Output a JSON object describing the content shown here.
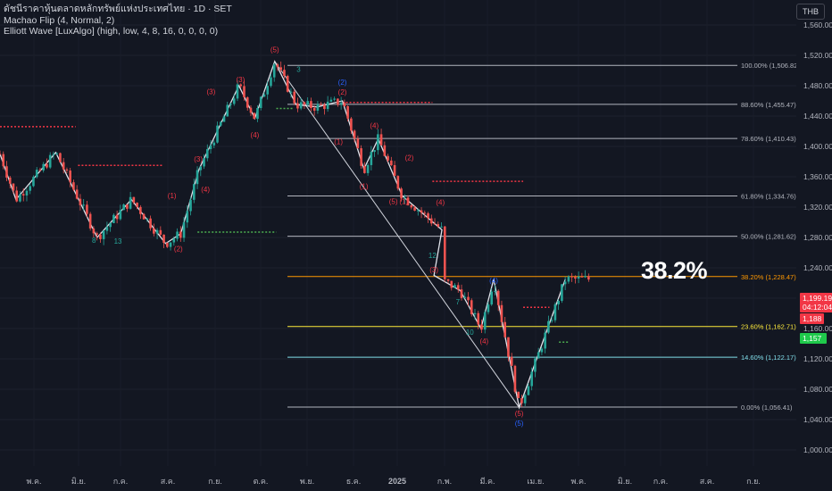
{
  "legend": {
    "title": "ดัชนีราคาหุ้นตลาดหลักทรัพย์แห่งประเทศไทย · 1D · SET",
    "indicator1": "Machao Flip (4, Normal, 2)",
    "indicator2": "Elliott Wave [LuxAlgo] (high, low, 4, 8, 16, 0, 0, 0, 0)"
  },
  "currency_button": "THB",
  "highlight_label": "38.2%",
  "price_tags": {
    "last_price": "1,199.19",
    "countdown": "04:12:04",
    "red_level": "1,188",
    "green_level": "1,157",
    "colors": {
      "last": "#f23645",
      "red": "#f23645",
      "green": "#22ab94"
    }
  },
  "chart_data": {
    "type": "candlestick",
    "y_axis": {
      "range": [
        990,
        1570
      ],
      "ticks": [
        1000,
        1040,
        1080,
        1120,
        1160,
        1200,
        1240,
        1280,
        1320,
        1360,
        1400,
        1440,
        1480,
        1520,
        1560
      ],
      "tick_labels": [
        "1,000.00",
        "1,040.00",
        "1,080.00",
        "1,120.00",
        "1,160.00",
        "1,200.00",
        "1,240.00",
        "1,280.00",
        "1,320.00",
        "1,360.00",
        "1,400.00",
        "1,440.00",
        "1,480.00",
        "1,520.00",
        "1,560.00"
      ]
    },
    "x_axis": {
      "labels": [
        "พ.ค.",
        "มิ.ย.",
        "ก.ค.",
        "ส.ค.",
        "ก.ย.",
        "ต.ค.",
        "พ.ย.",
        "ธ.ค.",
        "2025",
        "ก.พ.",
        "มี.ค.",
        "เม.ย.",
        "พ.ค.",
        "มิ.ย.",
        "ก.ค.",
        "ส.ค.",
        "ก.ย."
      ],
      "bold": [
        false,
        false,
        false,
        false,
        false,
        false,
        false,
        false,
        true,
        false,
        false,
        false,
        false,
        false,
        false,
        false,
        false
      ]
    },
    "fib_levels": [
      {
        "ratio": "100.00%",
        "value": 1506.82,
        "label": "100.00% (1,506.82)",
        "color": "#b2b5be"
      },
      {
        "ratio": "88.60%",
        "value": 1455.47,
        "label": "88.60% (1,455.47)",
        "color": "#b2b5be"
      },
      {
        "ratio": "78.60%",
        "value": 1410.43,
        "label": "78.60% (1,410.43)",
        "color": "#b2b5be"
      },
      {
        "ratio": "61.80%",
        "value": 1334.76,
        "label": "61.80% (1,334.76)",
        "color": "#b2b5be"
      },
      {
        "ratio": "50.00%",
        "value": 1281.62,
        "label": "50.00% (1,281.62)",
        "color": "#b2b5be"
      },
      {
        "ratio": "38.20%",
        "value": 1228.47,
        "label": "38.20% (1,228.47)",
        "color": "#ff9800"
      },
      {
        "ratio": "23.60%",
        "value": 1162.71,
        "label": "23.60% (1,162.71)",
        "color": "#ffeb3b"
      },
      {
        "ratio": "14.60%",
        "value": 1122.17,
        "label": "14.60% (1,122.17)",
        "color": "#80deea"
      },
      {
        "ratio": "0.00%",
        "value": 1056.41,
        "label": "0.00% (1,056.41)",
        "color": "#b2b5be"
      }
    ],
    "wave_labels": [
      {
        "text": "(5)",
        "x": 0.345,
        "y": 1524,
        "color": "#f23645"
      },
      {
        "text": "3",
        "x": 0.375,
        "y": 1498,
        "color": "#26a69a"
      },
      {
        "text": "(3)",
        "x": 0.302,
        "y": 1485,
        "color": "#f23645"
      },
      {
        "text": "(3)",
        "x": 0.265,
        "y": 1469,
        "color": "#f23645"
      },
      {
        "text": "(4)",
        "x": 0.32,
        "y": 1412,
        "color": "#f23645"
      },
      {
        "text": "(2)",
        "x": 0.43,
        "y": 1481,
        "color": "#2962ff"
      },
      {
        "text": "(2)",
        "x": 0.43,
        "y": 1468,
        "color": "#f23645"
      },
      {
        "text": "(4)",
        "x": 0.47,
        "y": 1424,
        "color": "#f23645"
      },
      {
        "text": "(1)",
        "x": 0.425,
        "y": 1403,
        "color": "#f23645"
      },
      {
        "text": "(2)",
        "x": 0.514,
        "y": 1382,
        "color": "#f23645"
      },
      {
        "text": "(5)",
        "x": 0.494,
        "y": 1324,
        "color": "#f23645"
      },
      {
        "text": "(1)",
        "x": 0.507,
        "y": 1324,
        "color": "#f23645"
      },
      {
        "text": "(4)",
        "x": 0.553,
        "y": 1323,
        "color": "#f23645"
      },
      {
        "text": "(1)",
        "x": 0.457,
        "y": 1344,
        "color": "#f23645"
      },
      {
        "text": "(3)",
        "x": 0.249,
        "y": 1380,
        "color": "#f23645"
      },
      {
        "text": "(4)",
        "x": 0.258,
        "y": 1340,
        "color": "#f23645"
      },
      {
        "text": "(1)",
        "x": 0.216,
        "y": 1332,
        "color": "#f23645"
      },
      {
        "text": "(2)",
        "x": 0.224,
        "y": 1262,
        "color": "#f23645"
      },
      {
        "text": "(3)",
        "x": 0.545,
        "y": 1234,
        "color": "#f23645"
      },
      {
        "text": "(4)",
        "x": 0.62,
        "y": 1220,
        "color": "#2962ff"
      },
      {
        "text": "(5)",
        "x": 0.652,
        "y": 1045,
        "color": "#f23645"
      },
      {
        "text": "(5)",
        "x": 0.652,
        "y": 1032,
        "color": "#2962ff"
      },
      {
        "text": "(4)",
        "x": 0.608,
        "y": 1140,
        "color": "#f23645"
      },
      {
        "text": "13",
        "x": 0.148,
        "y": 1272,
        "color": "#26a69a"
      },
      {
        "text": "8",
        "x": 0.118,
        "y": 1273,
        "color": "#26a69a"
      },
      {
        "text": "12",
        "x": 0.543,
        "y": 1253,
        "color": "#26a69a"
      },
      {
        "text": "10",
        "x": 0.59,
        "y": 1152,
        "color": "#26a69a"
      },
      {
        "text": "7",
        "x": 0.575,
        "y": 1192,
        "color": "#26a69a"
      }
    ],
    "zigzag_points": [
      {
        "x": 0.0,
        "y": 1390
      },
      {
        "x": 0.02,
        "y": 1330
      },
      {
        "x": 0.07,
        "y": 1392
      },
      {
        "x": 0.122,
        "y": 1280
      },
      {
        "x": 0.165,
        "y": 1330
      },
      {
        "x": 0.208,
        "y": 1272
      },
      {
        "x": 0.227,
        "y": 1285
      },
      {
        "x": 0.25,
        "y": 1370
      },
      {
        "x": 0.3,
        "y": 1480
      },
      {
        "x": 0.32,
        "y": 1437
      },
      {
        "x": 0.345,
        "y": 1512
      },
      {
        "x": 0.372,
        "y": 1455
      },
      {
        "x": 0.398,
        "y": 1452
      },
      {
        "x": 0.43,
        "y": 1460
      },
      {
        "x": 0.457,
        "y": 1370
      },
      {
        "x": 0.475,
        "y": 1410
      },
      {
        "x": 0.505,
        "y": 1335
      },
      {
        "x": 0.555,
        "y": 1290
      },
      {
        "x": 0.545,
        "y": 1230
      },
      {
        "x": 0.578,
        "y": 1210
      },
      {
        "x": 0.604,
        "y": 1160
      },
      {
        "x": 0.62,
        "y": 1225
      },
      {
        "x": 0.652,
        "y": 1056
      },
      {
        "x": 0.71,
        "y": 1225
      }
    ],
    "diagonal_line": [
      {
        "x": 0.345,
        "y": 1512
      },
      {
        "x": 0.652,
        "y": 1056
      }
    ],
    "dotted_levels": [
      {
        "x0": 0.0,
        "x1": 0.095,
        "y": 1426,
        "color": "#f23645"
      },
      {
        "x0": 0.098,
        "x1": 0.205,
        "y": 1375,
        "color": "#f23645"
      },
      {
        "x0": 0.248,
        "x1": 0.347,
        "y": 1287,
        "color": "#4caf50"
      },
      {
        "x0": 0.347,
        "x1": 0.368,
        "y": 1450,
        "color": "#4caf50"
      },
      {
        "x0": 0.43,
        "x1": 0.543,
        "y": 1458,
        "color": "#f23645"
      },
      {
        "x0": 0.543,
        "x1": 0.657,
        "y": 1354,
        "color": "#f23645"
      },
      {
        "x0": 0.657,
        "x1": 0.69,
        "y": 1188,
        "color": "#f23645"
      },
      {
        "x0": 0.702,
        "x1": 0.715,
        "y": 1142,
        "color": "#4caf50"
      }
    ]
  }
}
